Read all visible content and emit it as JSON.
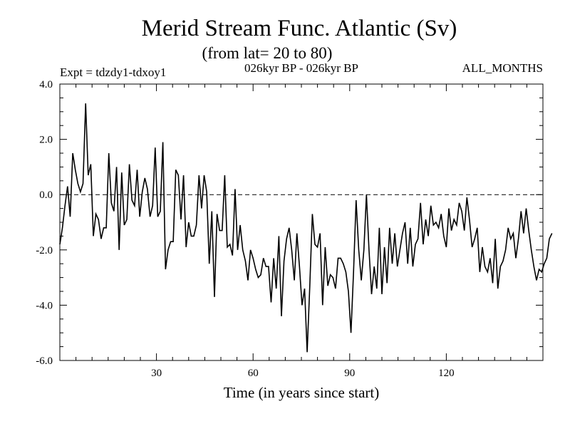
{
  "chart_data": {
    "type": "line",
    "title": "Merid Stream Func. Atlantic (Sv)",
    "subtitle": "(from lat= 20 to 80)",
    "annotations": {
      "left": "Expt = tdzdy1-tdxoy1",
      "center": "026kyr BP - 026kyr BP",
      "right": "ALL_MONTHS"
    },
    "xlabel": "Time (in years since start)",
    "ylabel": "",
    "xlim": [
      0,
      150
    ],
    "ylim": [
      -6.0,
      4.0
    ],
    "x_ticks": [
      30,
      60,
      90,
      120
    ],
    "x_tick_labels": [
      "30",
      "60",
      "90",
      "120"
    ],
    "y_ticks": [
      -6.0,
      -4.0,
      -2.0,
      0.0,
      2.0,
      4.0
    ],
    "y_tick_labels": [
      "-6.0",
      "-4.0",
      "-2.0",
      "0.0",
      "2.0",
      "4.0"
    ],
    "reference_line": 0.0,
    "series": [
      {
        "name": "Merid Stream Func. Atlantic",
        "color": "#000000",
        "x_start": 0,
        "x_step": 0.8,
        "values": [
          -1.8,
          -1.2,
          -0.4,
          0.3,
          -0.8,
          1.5,
          0.9,
          0.4,
          0.1,
          0.4,
          3.3,
          0.7,
          1.1,
          -1.5,
          -0.7,
          -0.9,
          -1.6,
          -1.2,
          -1.2,
          1.5,
          -0.3,
          -0.6,
          1.0,
          -2.0,
          0.8,
          -1.1,
          -0.9,
          1.1,
          -0.2,
          -0.4,
          0.9,
          -0.8,
          0.1,
          0.6,
          0.2,
          -0.8,
          -0.4,
          1.7,
          -0.8,
          -0.6,
          1.9,
          -2.7,
          -2.0,
          -1.7,
          -1.7,
          0.9,
          0.7,
          -0.9,
          0.7,
          -1.9,
          -1.0,
          -1.5,
          -1.5,
          -1.1,
          0.7,
          -0.5,
          0.7,
          0.1,
          -2.5,
          -0.6,
          -3.7,
          -0.7,
          -1.3,
          -1.3,
          0.7,
          -1.9,
          -1.8,
          -2.2,
          0.2,
          -2.0,
          -1.1,
          -2.0,
          -2.4,
          -3.1,
          -2.0,
          -2.3,
          -2.7,
          -3.0,
          -2.9,
          -2.3,
          -2.6,
          -2.6,
          -3.9,
          -2.3,
          -3.4,
          -1.5,
          -4.4,
          -2.4,
          -1.6,
          -1.2,
          -2.0,
          -3.1,
          -1.4,
          -2.6,
          -4.0,
          -3.4,
          -5.7,
          -3.3,
          -0.7,
          -1.8,
          -1.9,
          -1.4,
          -4.0,
          -1.9,
          -3.3,
          -2.9,
          -3.0,
          -3.4,
          -2.3,
          -2.3,
          -2.5,
          -2.8,
          -3.5,
          -5.0,
          -2.8,
          -0.2,
          -2.0,
          -3.1,
          -2.0,
          0.0,
          -2.0,
          -3.6,
          -2.6,
          -3.4,
          -1.2,
          -3.6,
          -1.9,
          -3.2,
          -1.2,
          -2.5,
          -1.4,
          -2.6,
          -2.0,
          -1.4,
          -1.0,
          -2.5,
          -1.2,
          -2.6,
          -1.8,
          -1.6,
          -0.3,
          -1.8,
          -0.9,
          -1.5,
          -0.4,
          -1.1,
          -1.0,
          -1.2,
          -0.7,
          -1.5,
          -1.9,
          -0.5,
          -1.3,
          -0.9,
          -1.1,
          -0.3,
          -0.6,
          -1.3,
          -0.1,
          -0.9,
          -1.9,
          -1.6,
          -1.2,
          -2.8,
          -1.9,
          -2.6,
          -2.8,
          -2.3,
          -3.2,
          -1.6,
          -3.4,
          -2.6,
          -2.4,
          -2.0,
          -1.2,
          -1.6,
          -1.4,
          -2.3,
          -1.6,
          -0.6,
          -1.4,
          -0.5,
          -1.3,
          -2.0,
          -2.6,
          -3.1,
          -2.7,
          -2.8,
          -2.5,
          -2.3,
          -1.6,
          -1.4
        ]
      }
    ]
  }
}
